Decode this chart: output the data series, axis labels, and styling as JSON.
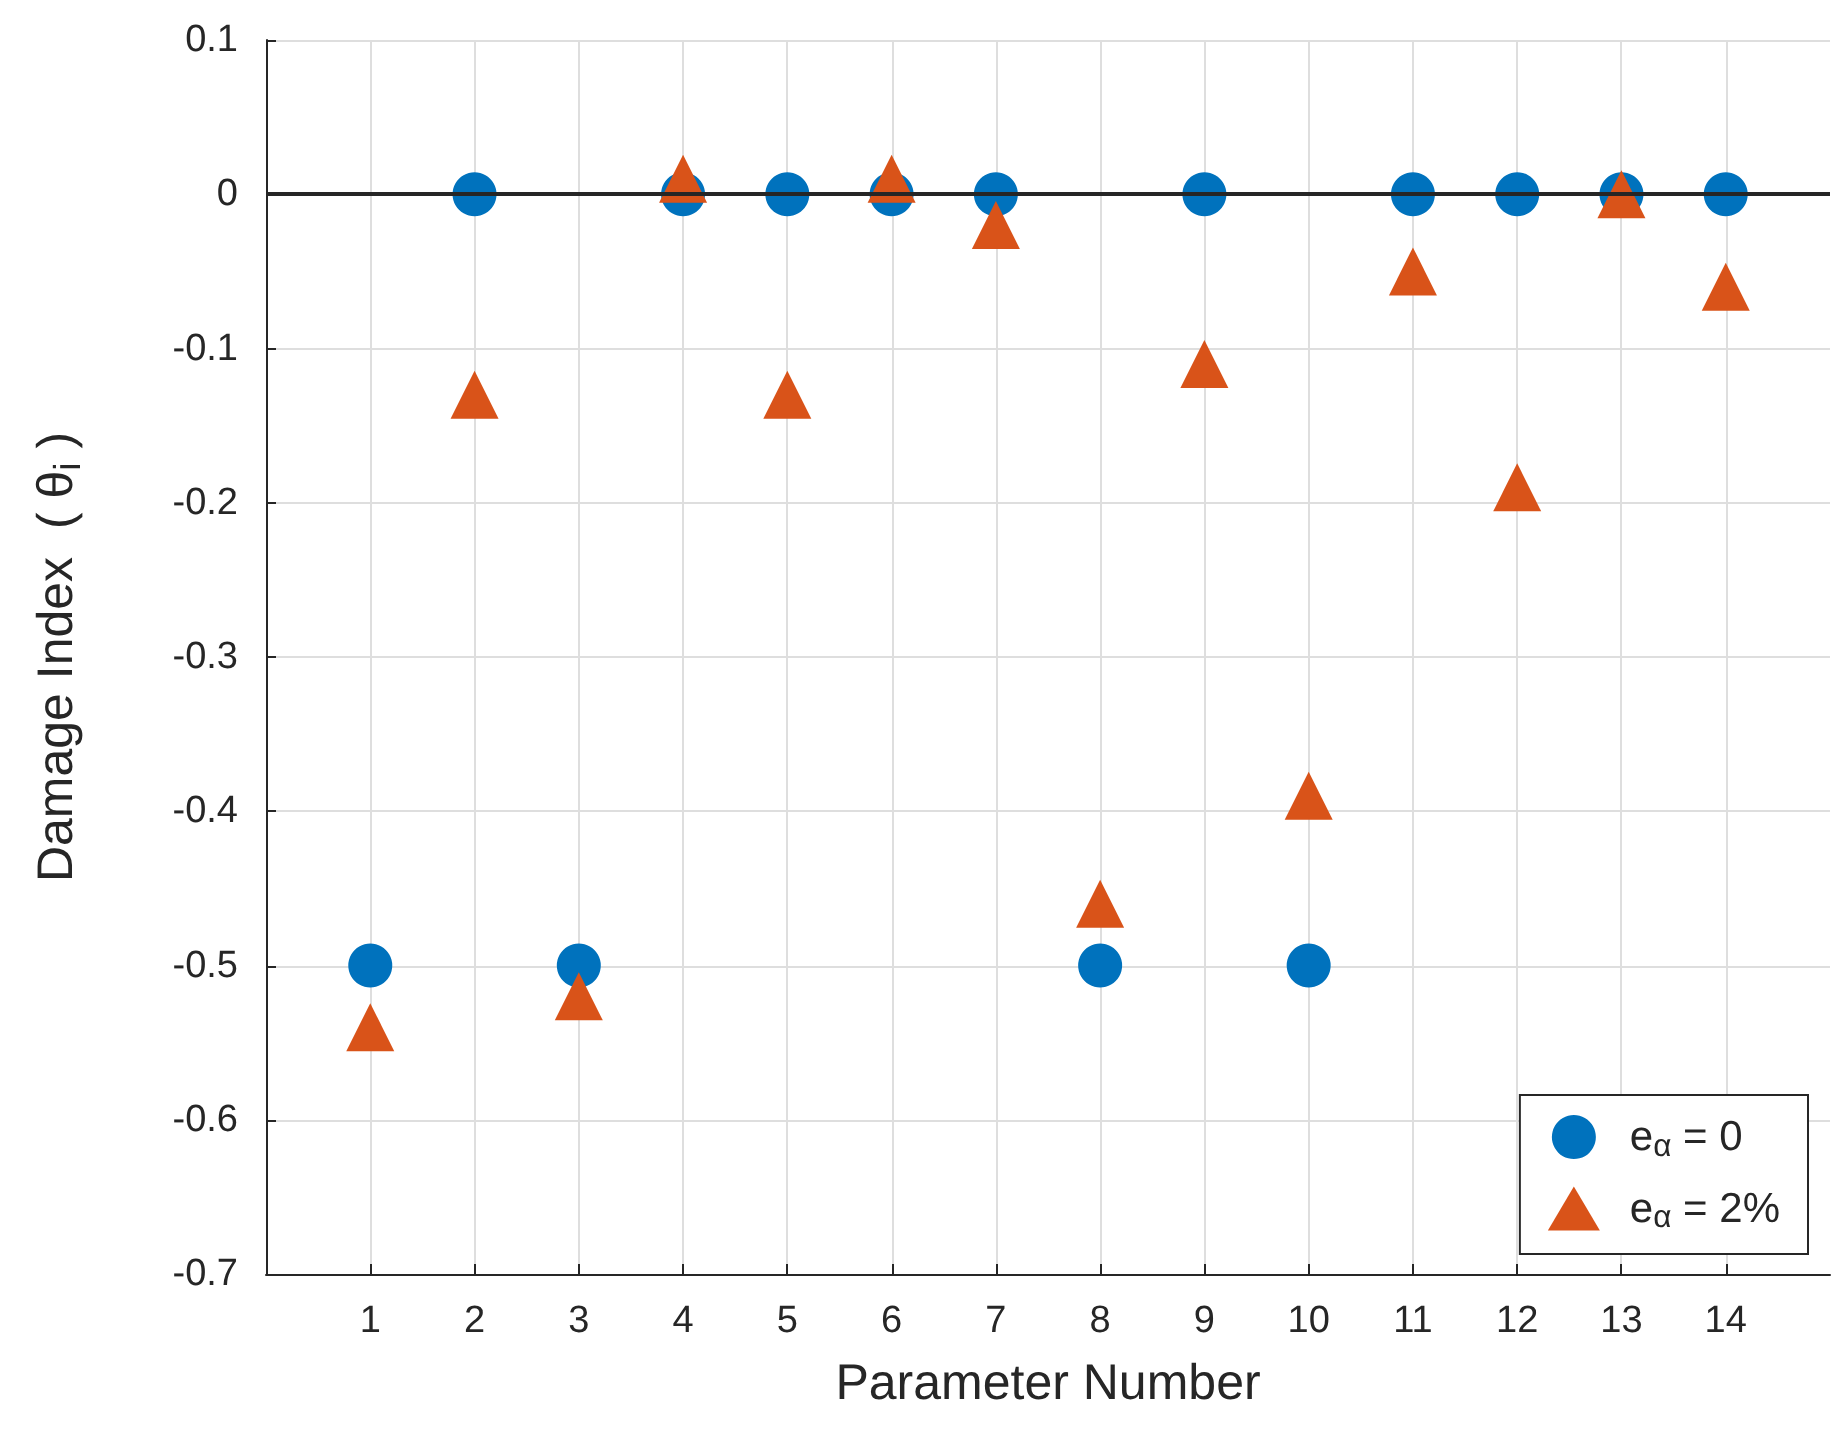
{
  "chart_data": {
    "type": "scatter",
    "xlabel": "Parameter Number",
    "ylabel": "Damage Index  ( θ$_{i}$ )",
    "x": [
      1,
      2,
      3,
      4,
      5,
      6,
      7,
      8,
      9,
      10,
      11,
      12,
      13,
      14
    ],
    "series": [
      {
        "name": "e$_{α}$ = 0",
        "color": "#0072bd",
        "marker": "circle",
        "values": [
          -0.5,
          0,
          -0.5,
          0,
          0,
          0,
          0,
          -0.5,
          0,
          -0.5,
          0,
          0,
          0,
          0
        ]
      },
      {
        "name": "e$_{α}$ = 2%",
        "color": "#d95319",
        "marker": "triangle",
        "values": [
          -0.54,
          -0.13,
          -0.52,
          0.01,
          -0.13,
          0.01,
          -0.02,
          -0.46,
          -0.11,
          -0.39,
          -0.05,
          -0.19,
          0,
          -0.06
        ]
      }
    ],
    "xlim": [
      0,
      15
    ],
    "xticks": [
      1,
      2,
      3,
      4,
      5,
      6,
      7,
      8,
      9,
      10,
      11,
      12,
      13,
      14
    ],
    "ylim": [
      -0.7,
      0.1
    ],
    "yticks": [
      -0.7,
      -0.6,
      -0.5,
      -0.4,
      -0.3,
      -0.2,
      -0.1,
      0,
      0.1
    ],
    "ref_lines": [
      {
        "axis": "y",
        "value": 0,
        "color": "#262626"
      }
    ],
    "grid": true,
    "legend": "bottom right"
  }
}
